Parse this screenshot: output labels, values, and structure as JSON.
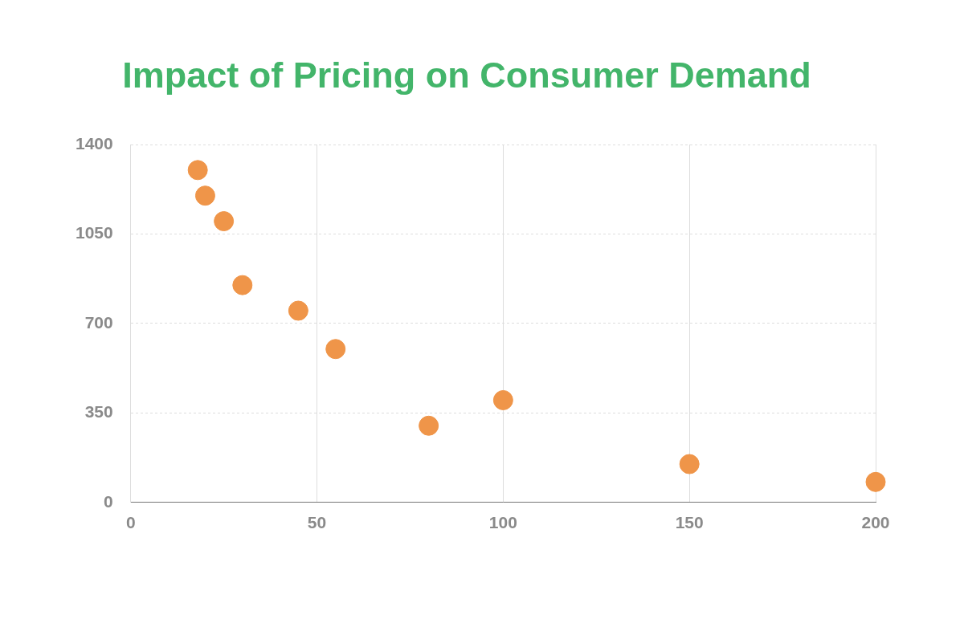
{
  "chart_data": {
    "type": "scatter",
    "title": "Impact of Pricing on Consumer Demand",
    "x": [
      18,
      20,
      25,
      30,
      45,
      55,
      80,
      100,
      150,
      200
    ],
    "values": [
      1300,
      1200,
      1100,
      850,
      750,
      600,
      300,
      400,
      150,
      80
    ],
    "color": "#ef9549",
    "xlim": [
      0,
      200
    ],
    "xticks": [
      0,
      50,
      100,
      150,
      200
    ],
    "ylim": [
      0,
      1400
    ],
    "yticks": [
      0,
      350,
      700,
      1050,
      1400
    ],
    "grid": true
  }
}
